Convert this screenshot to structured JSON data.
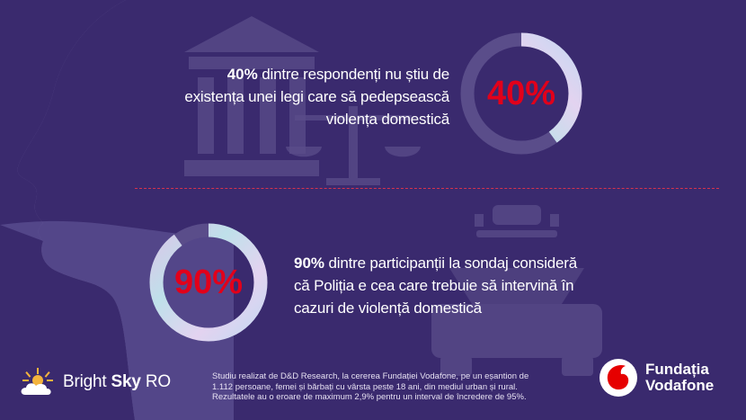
{
  "stat_top": {
    "percent_bold": "40%",
    "line1_rest": " dintre respondenți nu știu de",
    "line2": "existența unei legi care să pedepsească",
    "line3": "violența domestică",
    "ring_label": "40%",
    "ring_fill_fraction": 0.4
  },
  "stat_bottom": {
    "percent_bold": "90%",
    "line1_rest": " dintre participanții la sondaj consideră",
    "line2": "că Poliția e cea care trebuie să intervină în",
    "line3": "cazuri de violență domestică",
    "ring_label": "90%",
    "ring_fill_fraction": 0.9
  },
  "footer": {
    "line1": "Studiu realizat de D&D Research, la cererea Fundației Vodafone, pe un eșantion de",
    "line2": "1.112 persoane, femei și bărbați cu vârsta peste 18 ani, din mediul urban și rural.",
    "line3": "Rezultatele au o eroare de maximum 2,9% pentru un interval de încredere de 95%."
  },
  "brand_left": {
    "word_regular": "Bright ",
    "word_bold": "Sky",
    "word_suffix": " RO"
  },
  "brand_right": {
    "line1": "Fundația",
    "line2": "Vodafone"
  },
  "colors": {
    "background": "#3a2a6e",
    "accent_red": "#e2001a",
    "ring_track": "#5a4d8a"
  },
  "icons": {
    "courthouse": "courthouse-icon",
    "scales": "scales-of-justice-icon",
    "police_car": "police-car-icon",
    "bright_sky_logo": "cloud-sun-logo-icon",
    "vodafone_logo": "vodafone-speechmark-logo-icon"
  }
}
